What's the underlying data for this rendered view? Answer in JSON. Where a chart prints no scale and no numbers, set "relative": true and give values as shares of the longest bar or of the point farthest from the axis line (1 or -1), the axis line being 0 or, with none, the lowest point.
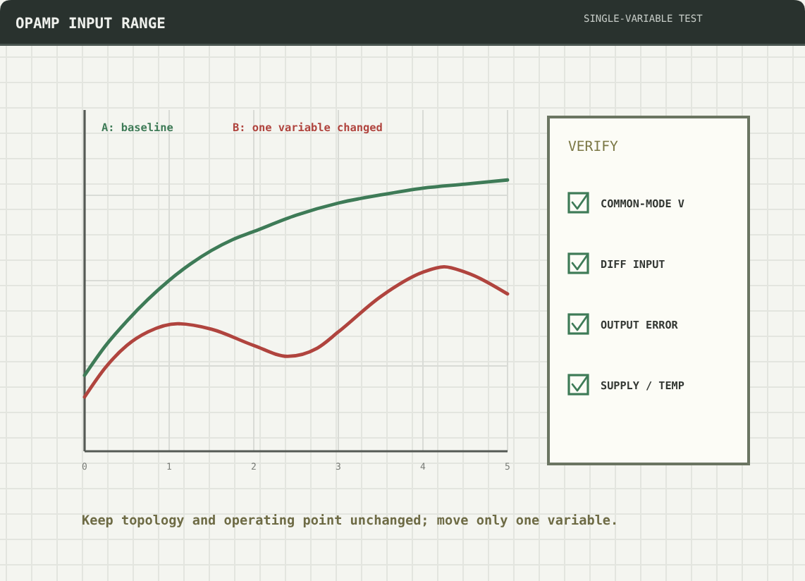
{
  "chart_data": {
    "type": "line",
    "title": "OPAMP INPUT RANGE",
    "subtitle": "SINGLE-VARIABLE TEST",
    "x": [
      0,
      0.25,
      0.5,
      0.75,
      1,
      1.25,
      1.5,
      1.75,
      2,
      2.5,
      3,
      3.5,
      4,
      4.5,
      5
    ],
    "series": [
      {
        "name": "A: baseline",
        "color": "#3e7b57",
        "values": [
          0.28,
          0.39,
          0.48,
          0.56,
          0.63,
          0.69,
          0.74,
          0.78,
          0.81,
          0.87,
          0.915,
          0.945,
          0.97,
          0.985,
          1
        ]
      },
      {
        "name": "B: one variable changed",
        "color": "#b0443e",
        "x": [
          0,
          0.25,
          0.5,
          0.75,
          1.1,
          1.5,
          2,
          2.4,
          2.75,
          3,
          3.5,
          4,
          4.25,
          4.5,
          5
        ],
        "values": [
          0.2,
          0.31,
          0.39,
          0.44,
          0.47,
          0.45,
          0.39,
          0.35,
          0.38,
          0.44,
          0.57,
          0.66,
          0.68,
          0.66,
          0.58
        ]
      }
    ],
    "relative": true,
    "xlim": [
      0,
      5
    ],
    "xticks": [
      0,
      1,
      2,
      3,
      4,
      5
    ],
    "grid": true,
    "legend": "top left",
    "annotations": [
      "VERIFY",
      "COMMON-MODE V",
      "DIFF INPUT",
      "OUTPUT ERROR",
      "SUPPLY / TEMP",
      "Keep topology and operating point unchanged; move only one variable."
    ]
  }
}
